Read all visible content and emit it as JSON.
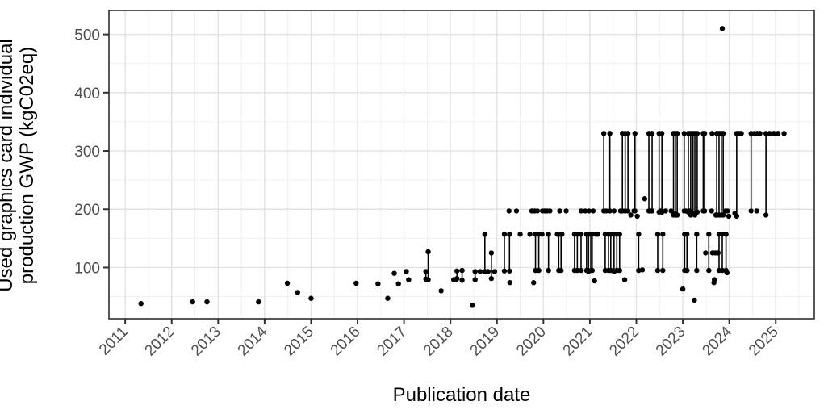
{
  "chart_data": {
    "type": "scatter",
    "subtype": "pointrange",
    "title": "",
    "xlabel": "Publication date",
    "ylabel": "Used graphics card individual production GWP (kgC02eq)",
    "ylabel_line1": "Used graphics card individual",
    "ylabel_line2": "production GWP (kgC02eq)",
    "x_ticks": [
      2011,
      2012,
      2013,
      2014,
      2015,
      2016,
      2017,
      2018,
      2019,
      2020,
      2021,
      2022,
      2023,
      2024,
      2025
    ],
    "y_ticks": [
      100,
      200,
      300,
      400,
      500
    ],
    "x_minor": [
      2011.5,
      2012.5,
      2013.5,
      2014.5,
      2015.5,
      2016.5,
      2017.5,
      2018.5,
      2019.5,
      2020.5,
      2021.5,
      2022.5,
      2023.5,
      2024.5,
      2025.5
    ],
    "y_minor": [
      50,
      150,
      250,
      350,
      450
    ],
    "xlim": [
      2010.65,
      2025.83
    ],
    "ylim": [
      12,
      541
    ],
    "grid": true,
    "legend": false,
    "colors": {
      "point": "#000000",
      "segment": "#000000",
      "grid_major": "#e2e2e2",
      "grid_minor": "#f0f0f0",
      "panel_border": "#2d2d2d",
      "tick": "#333333",
      "tick_label": "#4d4d4d",
      "axis_title": "#000000",
      "background": "#ffffff"
    },
    "points": [
      [
        2011.34,
        38
      ],
      [
        2012.45,
        41
      ],
      [
        2012.76,
        41
      ],
      [
        2013.87,
        41
      ],
      [
        2014.49,
        73
      ],
      [
        2014.71,
        57
      ],
      [
        2015.0,
        47
      ],
      [
        2015.97,
        73
      ],
      [
        2016.44,
        72
      ],
      [
        2016.65,
        47
      ],
      [
        2016.79,
        90
      ],
      [
        2016.88,
        72
      ],
      [
        2017.05,
        93
      ],
      [
        2017.1,
        79
      ],
      [
        2017.8,
        60
      ],
      [
        2018.07,
        79
      ],
      [
        2018.13,
        80
      ],
      [
        2018.47,
        35
      ],
      [
        2018.64,
        93
      ],
      [
        2018.81,
        93
      ],
      [
        2018.95,
        93
      ],
      [
        2019.28,
        74
      ],
      [
        2019.5,
        157
      ],
      [
        2019.71,
        157
      ],
      [
        2019.79,
        74
      ],
      [
        2019.97,
        157
      ],
      [
        2019.26,
        197
      ],
      [
        2019.42,
        197
      ],
      [
        2019.75,
        197
      ],
      [
        2019.81,
        197
      ],
      [
        2019.87,
        197
      ],
      [
        2019.98,
        197
      ],
      [
        2020.03,
        197
      ],
      [
        2020.08,
        197
      ],
      [
        2020.14,
        197
      ],
      [
        2020.35,
        197
      ],
      [
        2020.49,
        197
      ],
      [
        2020.81,
        197
      ],
      [
        2020.9,
        197
      ],
      [
        2020.98,
        197
      ],
      [
        2021.07,
        197
      ],
      [
        2020.3,
        157
      ],
      [
        2020.4,
        157
      ],
      [
        2021.1,
        77
      ],
      [
        2021.13,
        157
      ],
      [
        2021.17,
        157
      ],
      [
        2021.35,
        197
      ],
      [
        2021.52,
        197
      ],
      [
        2021.66,
        197
      ],
      [
        2021.88,
        190
      ],
      [
        2021.95,
        197
      ],
      [
        2022.02,
        188
      ],
      [
        2021.75,
        79
      ],
      [
        2022.13,
        96
      ],
      [
        2022.18,
        218
      ],
      [
        2022.3,
        197
      ],
      [
        2022.52,
        197
      ],
      [
        2022.63,
        197
      ],
      [
        2022.75,
        197
      ],
      [
        2022.85,
        190
      ],
      [
        2023.0,
        63
      ],
      [
        2023.07,
        197
      ],
      [
        2023.15,
        197
      ],
      [
        2023.25,
        44
      ],
      [
        2023.49,
        125
      ],
      [
        2023.62,
        197
      ],
      [
        2023.63,
        330
      ],
      [
        2023.64,
        125
      ],
      [
        2023.67,
        74
      ],
      [
        2023.68,
        79
      ],
      [
        2023.7,
        125
      ],
      [
        2023.71,
        190
      ],
      [
        2023.76,
        125
      ],
      [
        2023.85,
        510
      ],
      [
        2023.92,
        197
      ],
      [
        2023.95,
        91
      ],
      [
        2023.96,
        197
      ],
      [
        2023.99,
        188
      ],
      [
        2024.12,
        193
      ],
      [
        2024.21,
        330
      ],
      [
        2024.26,
        330
      ],
      [
        2024.54,
        330
      ],
      [
        2024.6,
        330
      ],
      [
        2024.66,
        330
      ],
      [
        2024.59,
        197
      ],
      [
        2024.87,
        330
      ],
      [
        2024.96,
        330
      ],
      [
        2025.05,
        330
      ],
      [
        2025.18,
        330
      ]
    ],
    "segments": [
      [
        2017.47,
        93,
        80
      ],
      [
        2017.52,
        127,
        79
      ],
      [
        2018.14,
        94,
        81
      ],
      [
        2018.25,
        95,
        78
      ],
      [
        2018.53,
        93,
        79
      ],
      [
        2018.74,
        157,
        93
      ],
      [
        2018.88,
        125,
        81
      ],
      [
        2019.16,
        157,
        94
      ],
      [
        2019.27,
        157,
        94
      ],
      [
        2019.83,
        157,
        95
      ],
      [
        2019.9,
        157,
        95
      ],
      [
        2020.11,
        157,
        95
      ],
      [
        2020.33,
        157,
        95
      ],
      [
        2020.38,
        157,
        95
      ],
      [
        2020.67,
        157,
        95
      ],
      [
        2020.73,
        157,
        95
      ],
      [
        2020.81,
        157,
        95
      ],
      [
        2020.93,
        157,
        95
      ],
      [
        2020.97,
        157,
        93
      ],
      [
        2021.02,
        157,
        95
      ],
      [
        2021.05,
        157,
        95
      ],
      [
        2021.33,
        157,
        95
      ],
      [
        2021.4,
        157,
        95
      ],
      [
        2021.45,
        157,
        95
      ],
      [
        2021.52,
        157,
        93
      ],
      [
        2021.58,
        157,
        95
      ],
      [
        2021.64,
        157,
        95
      ],
      [
        2021.3,
        330,
        197
      ],
      [
        2021.43,
        330,
        197
      ],
      [
        2021.7,
        330,
        197
      ],
      [
        2021.76,
        330,
        197
      ],
      [
        2021.82,
        330,
        197
      ],
      [
        2021.97,
        330,
        197
      ],
      [
        2022.05,
        157,
        95
      ],
      [
        2022.27,
        330,
        197
      ],
      [
        2022.34,
        330,
        197
      ],
      [
        2022.49,
        330,
        195
      ],
      [
        2022.55,
        330,
        195
      ],
      [
        2022.46,
        157,
        95
      ],
      [
        2022.57,
        157,
        95
      ],
      [
        2022.8,
        330,
        190
      ],
      [
        2022.84,
        330,
        192
      ],
      [
        2022.88,
        330,
        190
      ],
      [
        2023.03,
        330,
        197
      ],
      [
        2023.12,
        330,
        195
      ],
      [
        2023.17,
        330,
        190
      ],
      [
        2023.22,
        330,
        192
      ],
      [
        2023.26,
        330,
        190
      ],
      [
        2023.31,
        330,
        195
      ],
      [
        2023.04,
        157,
        95
      ],
      [
        2023.09,
        157,
        95
      ],
      [
        2023.3,
        157,
        95
      ],
      [
        2023.44,
        330,
        197
      ],
      [
        2023.47,
        330,
        197
      ],
      [
        2023.56,
        157,
        95
      ],
      [
        2023.73,
        330,
        190
      ],
      [
        2023.78,
        330,
        190
      ],
      [
        2023.83,
        330,
        190
      ],
      [
        2023.87,
        330,
        190
      ],
      [
        2023.78,
        157,
        95
      ],
      [
        2023.85,
        157,
        95
      ],
      [
        2023.93,
        157,
        95
      ],
      [
        2024.16,
        330,
        188
      ],
      [
        2024.47,
        330,
        197
      ],
      [
        2024.79,
        330,
        190
      ]
    ]
  }
}
